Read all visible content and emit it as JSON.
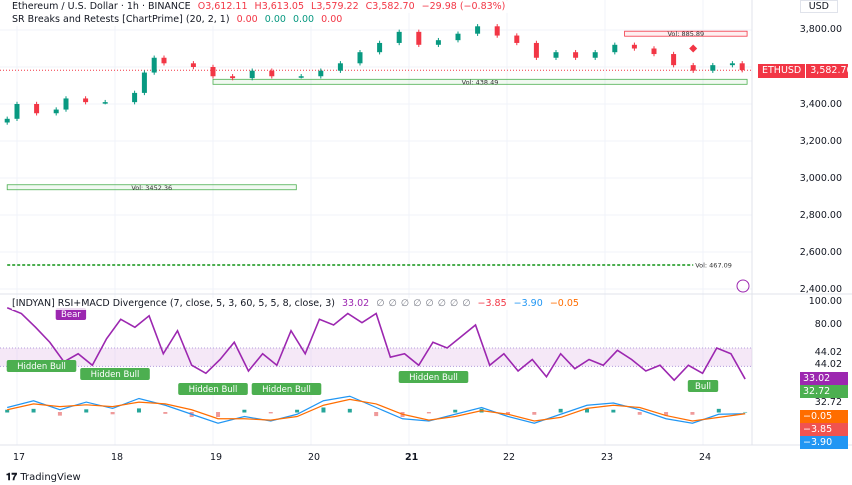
{
  "header": {
    "symbol_line": "Ethereum / U.S. Dollar · 1h · BINANCE",
    "open": "O3,612.11",
    "high": "H3,613.05",
    "low": "L3,579.22",
    "close": "C3,582.70",
    "change": "−29.98 (−0.83%)",
    "currency": "USD"
  },
  "sr_indicator": {
    "name": "SR Breaks and Retests [ChartPrime] (20, 2, 1)",
    "values": [
      "0.00",
      "0.00",
      "0.00",
      "0.00"
    ]
  },
  "rsi_indicator": {
    "name": "[INDYAN] RSI+MACD Divergence (7, close, 5, 3, 60, 5, 5, 8, close, 3)",
    "rsi": "33.02",
    "placeholders": [
      "∅",
      "∅",
      "∅",
      "∅",
      "∅",
      "∅",
      "∅",
      "∅"
    ],
    "macd": "−3.85",
    "signal": "−3.90",
    "hist": "−0.05"
  },
  "price_axis": [
    "3,800.00",
    "3,400.00",
    "3,200.00",
    "3,000.00",
    "2,800.00",
    "2,600.00",
    "2,400.00"
  ],
  "price_tag": {
    "symbol": "ETHUSD",
    "value": "3,582.70"
  },
  "rsi_axis": [
    "100.00",
    "80.00",
    "44.02",
    "44.02",
    "32.72"
  ],
  "rsi_tags": {
    "rsi": "33.02",
    "green": "32.72",
    "orange": "−0.05",
    "red": "−3.85",
    "blue": "−3.90"
  },
  "x_axis": [
    "17",
    "18",
    "19",
    "20",
    "21",
    "22",
    "23",
    "24"
  ],
  "zones": [
    {
      "label": "Vol: 885.89",
      "type": "resistance",
      "price": 3780,
      "from": 23.2,
      "to": 24.45
    },
    {
      "label": "Vol: 438.49",
      "type": "support",
      "price": 3520,
      "from": 19.0,
      "to": 24.45
    },
    {
      "label": "Vol: 3452.36",
      "type": "support",
      "price": 2950,
      "from": 16.9,
      "to": 19.85
    },
    {
      "label": "Vol: 467.09",
      "type": "support-dashed",
      "price": 2530,
      "from": 16.9,
      "to": 23.9
    }
  ],
  "divergence_labels": [
    {
      "text": "Bear",
      "day": 17.55,
      "type": "bear"
    },
    {
      "text": "Hidden Bull",
      "day": 17.25,
      "type": "bull"
    },
    {
      "text": "Hidden Bull",
      "day": 18.0,
      "type": "bull"
    },
    {
      "text": "Hidden Bull",
      "day": 19.0,
      "type": "bull"
    },
    {
      "text": "Hidden Bull",
      "day": 19.75,
      "type": "bull"
    },
    {
      "text": "Hidden Bull",
      "day": 21.25,
      "type": "bull"
    },
    {
      "text": "Bull",
      "day": 24.0,
      "type": "bull"
    }
  ],
  "footer": {
    "brand": "TradingView"
  },
  "colors": {
    "up": "#089981",
    "down": "#f23645",
    "rsi": "#9c27b0",
    "band": "#e1bee7",
    "macd": "#2196f3",
    "signal": "#ff6d00",
    "bull": "#4caf50"
  },
  "chart_data": {
    "type": "candlestick",
    "title": "Ethereum / U.S. Dollar · 1h · BINANCE",
    "ylim": [
      2380,
      3870
    ],
    "xlim": [
      16.9,
      24.5
    ],
    "grid": true,
    "time": [
      16.9,
      17.0,
      17.2,
      17.4,
      17.5,
      17.7,
      17.9,
      18.2,
      18.3,
      18.4,
      18.5,
      18.8,
      19.0,
      19.2,
      19.4,
      19.6,
      19.9,
      20.1,
      20.3,
      20.5,
      20.7,
      20.9,
      21.1,
      21.3,
      21.5,
      21.7,
      21.9,
      22.1,
      22.3,
      22.5,
      22.7,
      22.9,
      23.1,
      23.3,
      23.5,
      23.7,
      23.9,
      24.1,
      24.3,
      24.4
    ],
    "close": [
      3320,
      3400,
      3350,
      3370,
      3430,
      3410,
      3410,
      3460,
      3570,
      3650,
      3620,
      3600,
      3550,
      3540,
      3580,
      3550,
      3550,
      3580,
      3620,
      3680,
      3730,
      3790,
      3720,
      3745,
      3780,
      3820,
      3770,
      3730,
      3650,
      3680,
      3650,
      3680,
      3720,
      3700,
      3670,
      3610,
      3580,
      3610,
      3620,
      3583
    ],
    "rsi": {
      "time_range": [
        16.9,
        24.43
      ],
      "ylim": [
        0,
        100
      ],
      "band": [
        44.02,
        60
      ],
      "values": [
        95,
        90,
        78,
        65,
        48,
        55,
        45,
        68,
        85,
        78,
        88,
        55,
        75,
        45,
        38,
        50,
        65,
        40,
        55,
        45,
        75,
        55,
        85,
        80,
        90,
        82,
        90,
        52,
        55,
        45,
        65,
        60,
        70,
        80,
        45,
        55,
        40,
        50,
        35,
        55,
        42,
        50,
        45,
        58,
        50,
        40,
        45,
        32,
        45,
        38,
        60,
        55,
        33
      ]
    },
    "macd": {
      "time_range": [
        16.9,
        24.43
      ],
      "macd": [
        10,
        25,
        5,
        22,
        8,
        30,
        15,
        -5,
        -25,
        -10,
        -20,
        -5,
        25,
        35,
        10,
        -15,
        -20,
        -5,
        10,
        -10,
        -25,
        -5,
        15,
        20,
        5,
        -15,
        -25,
        -5,
        -3.85
      ],
      "signal": [
        5,
        18,
        12,
        16,
        12,
        22,
        18,
        5,
        -15,
        -15,
        -18,
        -10,
        15,
        28,
        18,
        -5,
        -18,
        -10,
        3,
        -5,
        -20,
        -12,
        8,
        15,
        10,
        -8,
        -20,
        -12,
        -3.9
      ]
    }
  }
}
